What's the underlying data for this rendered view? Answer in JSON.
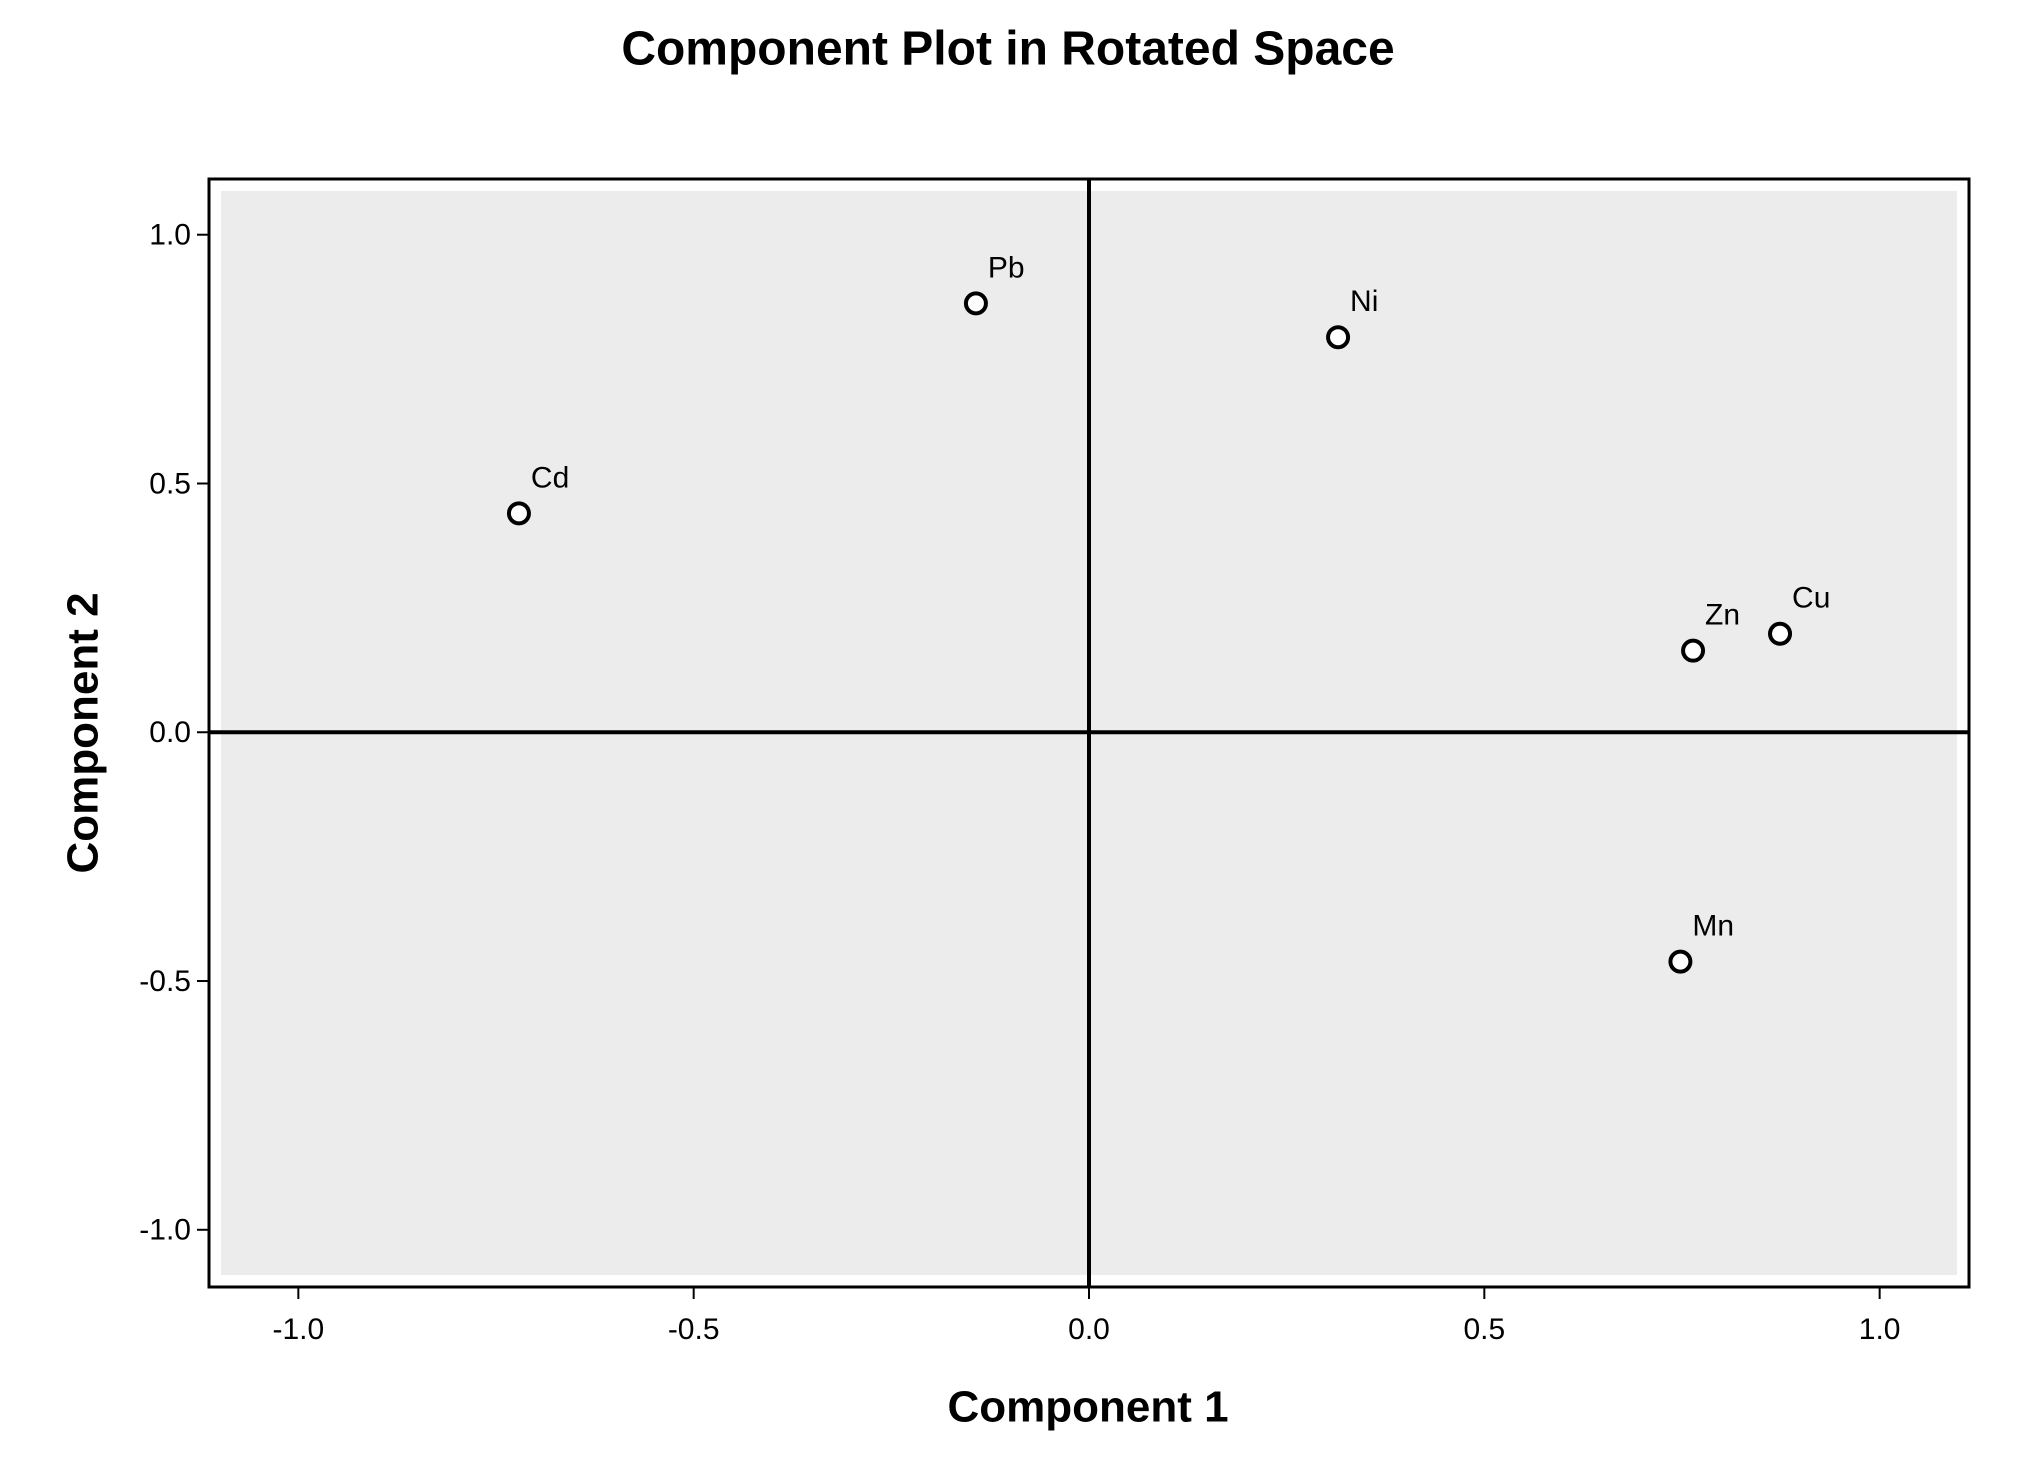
{
  "chart_data": {
    "type": "scatter",
    "title": "Component Plot in Rotated Space",
    "x_label": "Component 1",
    "y_label": "Component 2",
    "series": [
      {
        "labels": [
          "Pb",
          "Ni",
          "Cd",
          "Zn",
          "Cu",
          "Mn"
        ],
        "x": [
          -0.143,
          0.315,
          -0.721,
          0.764,
          0.874,
          0.748
        ],
        "values": [
          0.862,
          0.794,
          0.44,
          0.164,
          0.198,
          -0.461
        ],
        "color": "#000000"
      }
    ],
    "xlim": [
      -1.113,
      1.113
    ],
    "ylim": [
      -1.115,
      1.112
    ],
    "xticks": [
      {
        "value": -1,
        "label": "-1.0"
      },
      -0.5,
      {
        "value": 0,
        "label": "0.0"
      },
      0.5,
      {
        "value": 1,
        "label": "1.0"
      }
    ],
    "yticks": [
      {
        "value": -1,
        "label": "-1.0"
      },
      -0.5,
      {
        "value": 0,
        "label": "0.0"
      },
      0.5,
      {
        "value": 1,
        "label": "1.0"
      }
    ],
    "plot_background": "#ececec"
  }
}
